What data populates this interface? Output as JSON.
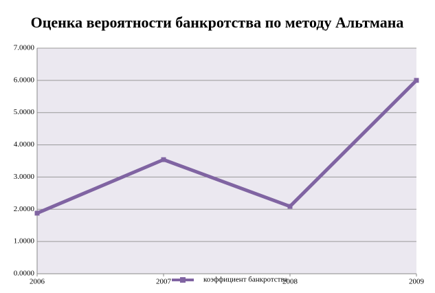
{
  "chart_data": {
    "type": "line",
    "title": "Оценка вероятности банкротства по методу Альтмана",
    "x": [
      2006,
      2007,
      2008,
      2009
    ],
    "xlim": [
      2006,
      2009
    ],
    "xticks": [
      2006,
      2007,
      2008,
      2009
    ],
    "series": [
      {
        "name": "коэффициент банкротства",
        "color": "#8064a2",
        "values": [
          1.88,
          3.54,
          2.09,
          6.0
        ]
      }
    ],
    "ylim": [
      0,
      7
    ],
    "yticks": [
      {
        "value": 0,
        "label": "0.0000"
      },
      {
        "value": 1,
        "label": "1.0000"
      },
      {
        "value": 2,
        "label": "2.0000"
      },
      {
        "value": 3,
        "label": "3.0000"
      },
      {
        "value": 4,
        "label": "4.0000"
      },
      {
        "value": 5,
        "label": "5.0000"
      },
      {
        "value": 6,
        "label": "6.0000"
      },
      {
        "value": 7,
        "label": "7.0000"
      }
    ],
    "grid": true
  }
}
